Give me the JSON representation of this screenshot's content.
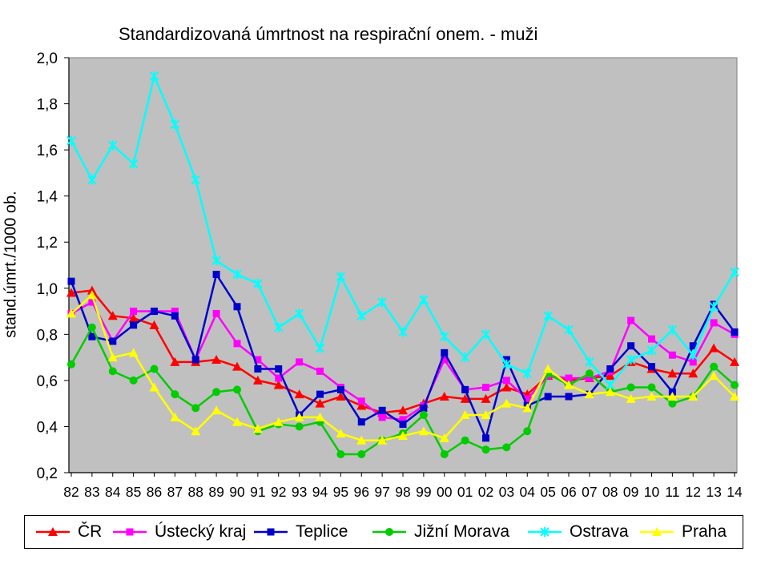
{
  "chart_data": {
    "type": "line",
    "title": "Standardizovaná úmrtnost na respirační onem. - muži",
    "ylabel": "stand.úmrt./1000 ob.",
    "xlabel": "",
    "ylim": [
      0.2,
      2.0
    ],
    "yticks": [
      "0,2",
      "0,4",
      "0,6",
      "0,8",
      "1,0",
      "1,2",
      "1,4",
      "1,6",
      "1,8",
      "2,0"
    ],
    "ytick_values": [
      0.2,
      0.4,
      0.6,
      0.8,
      1.0,
      1.2,
      1.4,
      1.6,
      1.8,
      2.0
    ],
    "categories": [
      "82",
      "83",
      "84",
      "85",
      "86",
      "87",
      "88",
      "89",
      "90",
      "91",
      "92",
      "93",
      "94",
      "95",
      "96",
      "97",
      "98",
      "99",
      "00",
      "01",
      "02",
      "03",
      "04",
      "05",
      "06",
      "07",
      "08",
      "09",
      "10",
      "11",
      "12",
      "13",
      "14"
    ],
    "legend_position": "bottom",
    "plot_background": "#c0c0c0",
    "series": [
      {
        "name": "ČR",
        "color": "#ff0000",
        "marker": "triangle",
        "values": [
          0.98,
          0.99,
          0.88,
          0.87,
          0.84,
          0.68,
          0.68,
          0.69,
          0.66,
          0.6,
          0.58,
          0.54,
          0.5,
          0.53,
          0.49,
          0.46,
          0.47,
          0.5,
          0.53,
          0.52,
          0.52,
          0.57,
          0.54,
          0.62,
          0.6,
          0.61,
          0.62,
          0.68,
          0.65,
          0.63,
          0.63,
          0.74,
          0.68
        ]
      },
      {
        "name": "Ústecký kraj",
        "color": "#ff00ff",
        "marker": "square",
        "values": [
          0.89,
          0.94,
          0.77,
          0.9,
          0.9,
          0.9,
          0.69,
          0.89,
          0.76,
          0.69,
          0.61,
          0.68,
          0.64,
          0.57,
          0.51,
          0.44,
          0.43,
          0.49,
          0.69,
          0.56,
          0.57,
          0.6,
          0.52,
          0.62,
          0.61,
          0.61,
          0.64,
          0.86,
          0.78,
          0.71,
          0.68,
          0.85,
          0.8
        ]
      },
      {
        "name": "Teplice",
        "color": "#0000cc",
        "marker": "square",
        "values": [
          1.03,
          0.79,
          0.77,
          0.84,
          0.9,
          0.88,
          0.69,
          1.06,
          0.92,
          0.65,
          0.65,
          0.45,
          0.54,
          0.56,
          0.42,
          0.47,
          0.41,
          0.48,
          0.72,
          0.56,
          0.35,
          0.69,
          0.49,
          0.53,
          0.53,
          0.54,
          0.65,
          0.75,
          0.66,
          0.55,
          0.75,
          0.93,
          0.81
        ]
      },
      {
        "name": "Jižní Morava",
        "color": "#00cc00",
        "marker": "circle",
        "values": [
          0.67,
          0.83,
          0.64,
          0.6,
          0.65,
          0.54,
          0.48,
          0.55,
          0.56,
          0.38,
          0.41,
          0.4,
          0.42,
          0.28,
          0.28,
          0.34,
          0.37,
          0.45,
          0.28,
          0.34,
          0.3,
          0.31,
          0.38,
          0.63,
          0.58,
          0.63,
          0.55,
          0.57,
          0.57,
          0.5,
          0.53,
          0.66,
          0.58
        ]
      },
      {
        "name": "Ostrava",
        "color": "#00ffff",
        "marker": "x",
        "values": [
          1.64,
          1.47,
          1.62,
          1.54,
          1.92,
          1.71,
          1.47,
          1.12,
          1.06,
          1.02,
          0.83,
          0.89,
          0.74,
          1.05,
          0.88,
          0.94,
          0.81,
          0.95,
          0.79,
          0.7,
          0.8,
          0.67,
          0.63,
          0.88,
          0.82,
          0.68,
          0.58,
          0.69,
          0.73,
          0.82,
          0.71,
          0.92,
          1.07
        ]
      },
      {
        "name": "Praha",
        "color": "#ffff00",
        "marker": "triangle",
        "values": [
          0.89,
          0.97,
          0.7,
          0.72,
          0.57,
          0.44,
          0.38,
          0.47,
          0.42,
          0.39,
          0.42,
          0.44,
          0.44,
          0.37,
          0.34,
          0.34,
          0.36,
          0.38,
          0.35,
          0.45,
          0.45,
          0.5,
          0.48,
          0.65,
          0.58,
          0.54,
          0.55,
          0.52,
          0.53,
          0.53,
          0.53,
          0.62,
          0.53
        ]
      }
    ]
  }
}
